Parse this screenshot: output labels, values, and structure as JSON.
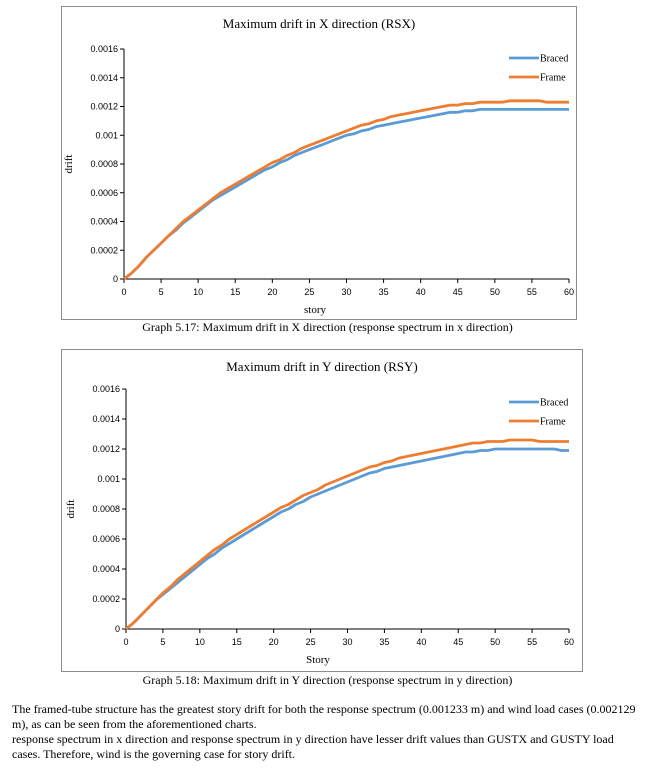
{
  "charts": [
    {
      "title": "Maximum drift in X direction (RSX)",
      "xlabel": "story",
      "ylabel": "drift",
      "caption": "Graph 5.17: Maximum drift in X direction (response spectrum in x direction)"
    },
    {
      "title": "Maximum drift in Y direction (RSY)",
      "xlabel": "Story",
      "ylabel": "drift",
      "caption": "Graph 5.18: Maximum drift in Y direction (response spectrum in y direction)"
    }
  ],
  "chart_data": [
    {
      "type": "line",
      "title": "Maximum drift in X direction (RSX)",
      "xlabel": "story",
      "ylabel": "drift",
      "xlim": [
        0,
        60
      ],
      "ylim": [
        0,
        0.0016
      ],
      "x_ticks": [
        "0",
        "5",
        "10",
        "15",
        "20",
        "25",
        "30",
        "35",
        "40",
        "45",
        "50",
        "55",
        "60"
      ],
      "y_ticks": [
        "0",
        "0.0002",
        "0.0004",
        "0.0006",
        "0.0008",
        "0.001",
        "0.0012",
        "0.0014",
        "0.0016"
      ],
      "grid": false,
      "legend": "top-right",
      "x": [
        0,
        1,
        2,
        3,
        4,
        5,
        6,
        7,
        8,
        9,
        10,
        11,
        12,
        13,
        14,
        15,
        16,
        17,
        18,
        19,
        20,
        21,
        22,
        23,
        24,
        25,
        26,
        27,
        28,
        29,
        30,
        31,
        32,
        33,
        34,
        35,
        36,
        37,
        38,
        39,
        40,
        41,
        42,
        43,
        44,
        45,
        46,
        47,
        48,
        49,
        50,
        51,
        52,
        53,
        54,
        55,
        56,
        57,
        58,
        59,
        60
      ],
      "series": [
        {
          "name": "Braced",
          "color": "#5b9bd5",
          "values": [
            0.0,
            4e-05,
            9e-05,
            0.00015,
            0.0002,
            0.00025,
            0.0003,
            0.00034,
            0.00039,
            0.00043,
            0.00047,
            0.00051,
            0.00055,
            0.00058,
            0.00061,
            0.00064,
            0.00067,
            0.0007,
            0.00073,
            0.00076,
            0.00078,
            0.00081,
            0.00083,
            0.00086,
            0.00088,
            0.0009,
            0.00092,
            0.00094,
            0.00096,
            0.00098,
            0.001,
            0.00101,
            0.00103,
            0.00104,
            0.00106,
            0.00107,
            0.00108,
            0.00109,
            0.0011,
            0.00111,
            0.00112,
            0.00113,
            0.00114,
            0.00115,
            0.00116,
            0.00116,
            0.00117,
            0.00117,
            0.00118,
            0.00118,
            0.00118,
            0.00118,
            0.00118,
            0.00118,
            0.00118,
            0.00118,
            0.00118,
            0.00118,
            0.00118,
            0.00118,
            0.00118
          ]
        },
        {
          "name": "Frame",
          "color": "#ed7d31",
          "values": [
            0.0,
            4e-05,
            9e-05,
            0.00015,
            0.0002,
            0.00025,
            0.0003,
            0.00035,
            0.0004,
            0.00044,
            0.00048,
            0.00052,
            0.00056,
            0.0006,
            0.00063,
            0.00066,
            0.00069,
            0.00072,
            0.00075,
            0.00078,
            0.00081,
            0.00083,
            0.00086,
            0.00088,
            0.00091,
            0.00093,
            0.00095,
            0.00097,
            0.00099,
            0.00101,
            0.00103,
            0.00105,
            0.00107,
            0.00108,
            0.0011,
            0.00111,
            0.00113,
            0.00114,
            0.00115,
            0.00116,
            0.00117,
            0.00118,
            0.00119,
            0.0012,
            0.00121,
            0.00121,
            0.00122,
            0.00122,
            0.00123,
            0.00123,
            0.00123,
            0.00123,
            0.00124,
            0.00124,
            0.00124,
            0.00124,
            0.00124,
            0.00123,
            0.00123,
            0.00123,
            0.00123
          ]
        }
      ]
    },
    {
      "type": "line",
      "title": "Maximum drift in Y direction (RSY)",
      "xlabel": "Story",
      "ylabel": "drift",
      "xlim": [
        0,
        60
      ],
      "ylim": [
        0,
        0.0016
      ],
      "x_ticks": [
        "0",
        "5",
        "10",
        "15",
        "20",
        "25",
        "30",
        "35",
        "40",
        "45",
        "50",
        "55",
        "60"
      ],
      "y_ticks": [
        "0",
        "0.0002",
        "0.0004",
        "0.0006",
        "0.0008",
        "0.001",
        "0.0012",
        "0.0014",
        "0.0016"
      ],
      "grid": false,
      "legend": "top-right",
      "x": [
        0,
        1,
        2,
        3,
        4,
        5,
        6,
        7,
        8,
        9,
        10,
        11,
        12,
        13,
        14,
        15,
        16,
        17,
        18,
        19,
        20,
        21,
        22,
        23,
        24,
        25,
        26,
        27,
        28,
        29,
        30,
        31,
        32,
        33,
        34,
        35,
        36,
        37,
        38,
        39,
        40,
        41,
        42,
        43,
        44,
        45,
        46,
        47,
        48,
        49,
        50,
        51,
        52,
        53,
        54,
        55,
        56,
        57,
        58,
        59,
        60
      ],
      "series": [
        {
          "name": "Braced",
          "color": "#5b9bd5",
          "values": [
            0.0,
            4e-05,
            9e-05,
            0.00014,
            0.00019,
            0.00023,
            0.00027,
            0.00031,
            0.00035,
            0.00039,
            0.00043,
            0.00047,
            0.0005,
            0.00054,
            0.00057,
            0.0006,
            0.00063,
            0.00066,
            0.00069,
            0.00072,
            0.00075,
            0.00078,
            0.0008,
            0.00083,
            0.00085,
            0.00088,
            0.0009,
            0.00092,
            0.00094,
            0.00096,
            0.00098,
            0.001,
            0.00102,
            0.00104,
            0.00105,
            0.00107,
            0.00108,
            0.00109,
            0.0011,
            0.00111,
            0.00112,
            0.00113,
            0.00114,
            0.00115,
            0.00116,
            0.00117,
            0.00118,
            0.00118,
            0.00119,
            0.00119,
            0.0012,
            0.0012,
            0.0012,
            0.0012,
            0.0012,
            0.0012,
            0.0012,
            0.0012,
            0.0012,
            0.00119,
            0.00119
          ]
        },
        {
          "name": "Frame",
          "color": "#ed7d31",
          "values": [
            0.0,
            4e-05,
            9e-05,
            0.00014,
            0.00019,
            0.00024,
            0.00028,
            0.00033,
            0.00037,
            0.00041,
            0.00045,
            0.00049,
            0.00053,
            0.00056,
            0.0006,
            0.00063,
            0.00066,
            0.00069,
            0.00072,
            0.00075,
            0.00078,
            0.00081,
            0.00083,
            0.00086,
            0.00089,
            0.00091,
            0.00093,
            0.00096,
            0.00098,
            0.001,
            0.00102,
            0.00104,
            0.00106,
            0.00108,
            0.00109,
            0.00111,
            0.00112,
            0.00114,
            0.00115,
            0.00116,
            0.00117,
            0.00118,
            0.00119,
            0.0012,
            0.00121,
            0.00122,
            0.00123,
            0.00124,
            0.00124,
            0.00125,
            0.00125,
            0.00125,
            0.00126,
            0.00126,
            0.00126,
            0.00126,
            0.00125,
            0.00125,
            0.00125,
            0.00125,
            0.00125
          ]
        }
      ]
    }
  ],
  "body_text": {
    "paragraph_1": "The framed-tube structure has the greatest story drift for both the response spectrum (0.001233 m) and wind load cases (0.002129 m), as can be seen from the aforementioned charts.",
    "paragraph_2": " response spectrum in x direction and response spectrum in y direction have lesser drift values than GUSTX and GUSTY load cases. Therefore, wind is the governing case for story drift."
  }
}
